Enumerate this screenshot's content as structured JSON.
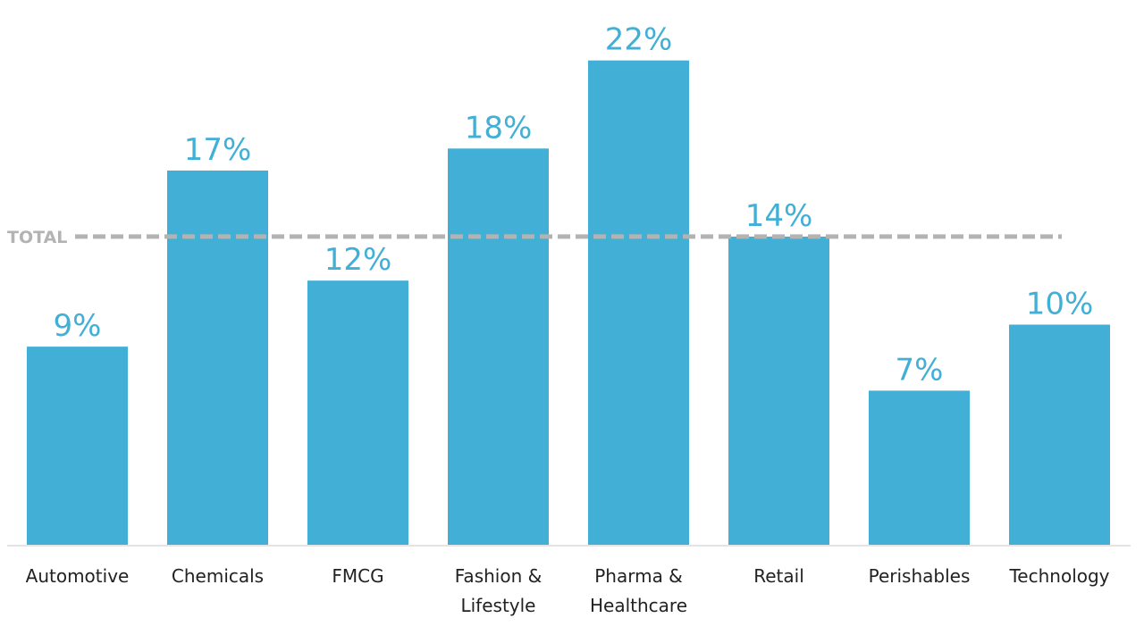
{
  "chart_data": {
    "type": "bar",
    "categories": [
      [
        "Automotive"
      ],
      [
        "Chemicals"
      ],
      [
        "FMCG"
      ],
      [
        "Fashion &",
        "Lifestyle"
      ],
      [
        "Pharma &",
        "Healthcare"
      ],
      [
        "Retail"
      ],
      [
        "Perishables"
      ],
      [
        "Technology"
      ]
    ],
    "values": [
      9,
      17,
      12,
      18,
      22,
      14,
      7,
      10
    ],
    "value_labels": [
      "9%",
      "17%",
      "12%",
      "18%",
      "22%",
      "14%",
      "7%",
      "10%"
    ],
    "reference_line": {
      "label": "TOTAL",
      "value": 14,
      "style": "dashed",
      "color": "#b3b3b3"
    },
    "bar_color": "#42afd6",
    "ylim": [
      0,
      22
    ],
    "grid": false,
    "title": "",
    "xlabel": "",
    "ylabel": ""
  }
}
